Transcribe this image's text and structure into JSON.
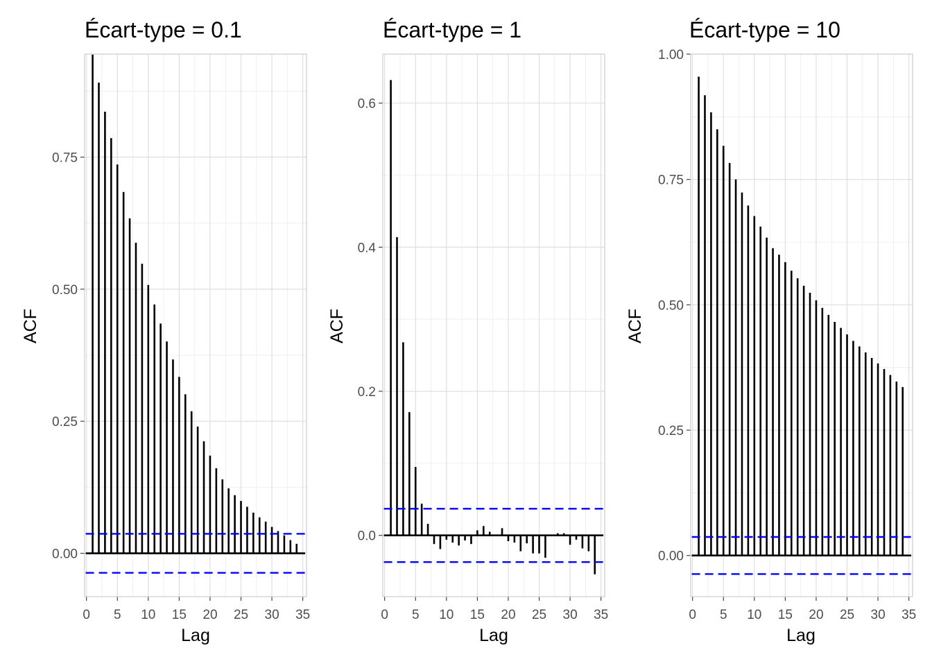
{
  "chart_data": [
    {
      "type": "bar",
      "title": "Écart-type = 0.1",
      "xlabel": "Lag",
      "ylabel": "ACF",
      "xlim": [
        -0.3,
        35.6
      ],
      "ylim": [
        -0.082,
        0.945
      ],
      "xticks": [
        0,
        5,
        10,
        15,
        20,
        25,
        30,
        35
      ],
      "yticks": [
        0,
        0.25,
        0.5,
        0.75
      ],
      "ytick_labels": [
        "0.00",
        "0.25",
        "0.50",
        "0.75"
      ],
      "ci": 0.037,
      "grid": true,
      "x": [
        1,
        2,
        3,
        4,
        5,
        6,
        7,
        8,
        9,
        10,
        11,
        12,
        13,
        14,
        15,
        16,
        17,
        18,
        19,
        20,
        21,
        22,
        23,
        24,
        25,
        26,
        27,
        28,
        29,
        30,
        31,
        32,
        33,
        34
      ],
      "values": [
        0.944,
        0.891,
        0.836,
        0.786,
        0.736,
        0.684,
        0.634,
        0.588,
        0.548,
        0.508,
        0.471,
        0.435,
        0.401,
        0.367,
        0.334,
        0.301,
        0.269,
        0.24,
        0.212,
        0.185,
        0.161,
        0.14,
        0.123,
        0.11,
        0.099,
        0.088,
        0.077,
        0.068,
        0.06,
        0.05,
        0.042,
        0.034,
        0.025,
        0.018
      ]
    },
    {
      "type": "bar",
      "title": "Écart-type = 1",
      "xlabel": "Lag",
      "ylabel": "ACF",
      "xlim": [
        -0.3,
        35.6
      ],
      "ylim": [
        -0.085,
        0.668
      ],
      "xticks": [
        0,
        5,
        10,
        15,
        20,
        25,
        30,
        35
      ],
      "yticks": [
        0,
        0.2,
        0.4,
        0.6
      ],
      "ytick_labels": [
        "0.0",
        "0.2",
        "0.4",
        "0.6"
      ],
      "ci": 0.037,
      "grid": true,
      "x": [
        1,
        2,
        3,
        4,
        5,
        6,
        7,
        8,
        9,
        10,
        11,
        12,
        13,
        14,
        15,
        16,
        17,
        18,
        19,
        20,
        21,
        22,
        23,
        24,
        25,
        26,
        27,
        28,
        29,
        30,
        31,
        32,
        33,
        34
      ],
      "values": [
        0.632,
        0.414,
        0.268,
        0.171,
        0.095,
        0.044,
        0.016,
        -0.012,
        -0.019,
        -0.006,
        -0.01,
        -0.014,
        -0.007,
        -0.012,
        0.007,
        0.013,
        0.005,
        0.0,
        0.01,
        -0.008,
        -0.01,
        -0.022,
        -0.011,
        -0.025,
        -0.025,
        -0.031,
        0.0,
        0.003,
        0.003,
        -0.013,
        -0.006,
        -0.018,
        -0.022,
        -0.054
      ]
    },
    {
      "type": "bar",
      "title": "Écart-type = 10",
      "xlabel": "Lag",
      "ylabel": "ACF",
      "xlim": [
        -0.3,
        35.6
      ],
      "ylim": [
        -0.082,
        1.0
      ],
      "xticks": [
        0,
        5,
        10,
        15,
        20,
        25,
        30,
        35
      ],
      "yticks": [
        0,
        0.25,
        0.5,
        0.75,
        1.0
      ],
      "ytick_labels": [
        "0.00",
        "0.25",
        "0.50",
        "0.75",
        "1.00"
      ],
      "ci": 0.037,
      "grid": true,
      "x": [
        1,
        2,
        3,
        4,
        5,
        6,
        7,
        8,
        9,
        10,
        11,
        12,
        13,
        14,
        15,
        16,
        17,
        18,
        19,
        20,
        21,
        22,
        23,
        24,
        25,
        26,
        27,
        28,
        29,
        30,
        31,
        32,
        33,
        34
      ],
      "values": [
        0.955,
        0.918,
        0.884,
        0.85,
        0.817,
        0.783,
        0.75,
        0.724,
        0.698,
        0.677,
        0.656,
        0.634,
        0.613,
        0.6,
        0.585,
        0.568,
        0.553,
        0.538,
        0.524,
        0.509,
        0.494,
        0.48,
        0.466,
        0.454,
        0.441,
        0.428,
        0.417,
        0.405,
        0.394,
        0.383,
        0.372,
        0.36,
        0.347,
        0.336
      ]
    }
  ]
}
